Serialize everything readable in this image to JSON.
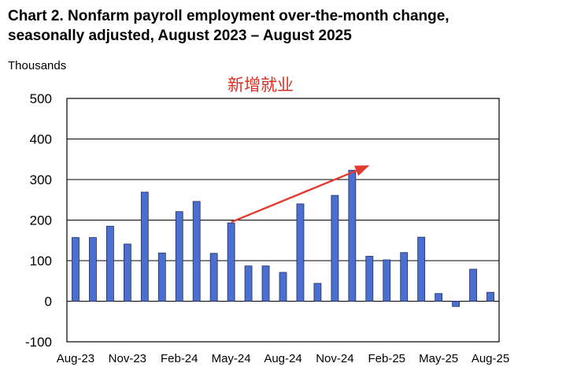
{
  "title_line1": "Chart 2. Nonfarm payroll employment over-the-month change,",
  "title_line2": "seasonally adjusted, August 2023 – August 2025",
  "annotation": "新增就业",
  "colors": {
    "bar": "#4a6fd1",
    "bar_edge": "#1f2f66",
    "arrow": "#e33a2e",
    "grid": "#000000"
  },
  "chart_data": {
    "type": "bar",
    "title": "Chart 2. Nonfarm payroll employment over-the-month change, seasonally adjusted, August 2023 – August 2025",
    "ylabel": "Thousands",
    "ylim": [
      -100,
      500
    ],
    "yticks": [
      500,
      400,
      300,
      200,
      100,
      0,
      -100
    ],
    "grid": true,
    "categories": [
      "Aug-23",
      "Sep-23",
      "Oct-23",
      "Nov-23",
      "Dec-23",
      "Jan-24",
      "Feb-24",
      "Mar-24",
      "Apr-24",
      "May-24",
      "Jun-24",
      "Jul-24",
      "Aug-24",
      "Sep-24",
      "Oct-24",
      "Nov-24",
      "Dec-24",
      "Jan-25",
      "Feb-25",
      "Mar-25",
      "Apr-25",
      "May-25",
      "Jun-25",
      "Jul-25",
      "Aug-25"
    ],
    "xtick_labels": [
      "Aug-23",
      "Nov-23",
      "Feb-24",
      "May-24",
      "Aug-24",
      "Nov-24",
      "Feb-25",
      "May-25",
      "Aug-25"
    ],
    "values": [
      157,
      157,
      185,
      141,
      269,
      119,
      221,
      246,
      118,
      193,
      87,
      87,
      71,
      240,
      44,
      261,
      323,
      111,
      102,
      120,
      158,
      19,
      -13,
      79,
      22
    ],
    "annotations": [
      {
        "text": "新增就业",
        "type": "arrow",
        "from": [
          "May-24",
          195
        ],
        "to": [
          "Jan-25",
          335
        ]
      }
    ]
  }
}
